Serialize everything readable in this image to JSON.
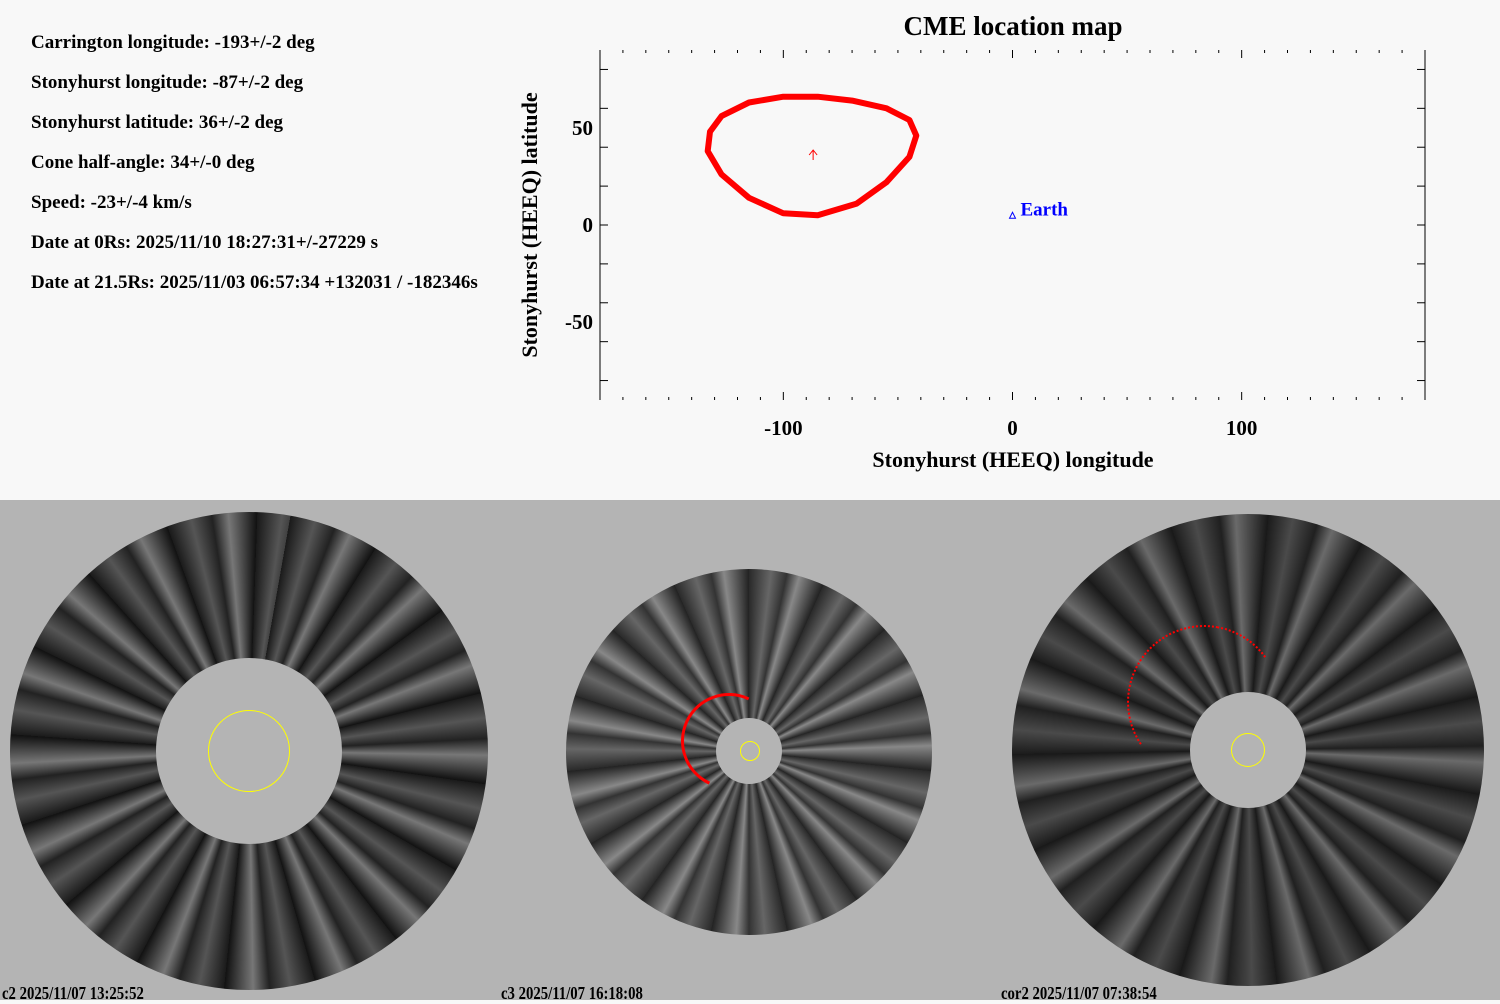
{
  "info": [
    "Carrington longitude: -193+/-2 deg",
    "Stonyhurst longitude: -87+/-2 deg",
    "Stonyhurst latitude: 36+/-2 deg",
    "Cone half-angle: 34+/-0 deg",
    "Speed: -23+/-4 km/s",
    "Date at 0Rs: 2025/11/10 18:27:31+/-27229 s",
    "Date at 21.5Rs: 2025/11/03 06:57:34 +132031 / -182346s"
  ],
  "chart_data": {
    "type": "scatter",
    "title": "CME location map",
    "xlabel": "Stonyhurst (HEEQ) longitude",
    "ylabel": "Stonyhurst (HEEQ) latitude",
    "xlim": [
      -180,
      180
    ],
    "ylim": [
      -90,
      90
    ],
    "xticks": [
      -100,
      0,
      100
    ],
    "yticks": [
      50,
      0,
      -50
    ],
    "grid": false,
    "cme_center": {
      "lon": -87,
      "lat": 36,
      "marker": "arrow",
      "color": "#ff0000"
    },
    "cme_contour": {
      "color": "#ff0000",
      "points": [
        [
          -132,
          48
        ],
        [
          -127,
          56
        ],
        [
          -115,
          63
        ],
        [
          -100,
          66
        ],
        [
          -85,
          66
        ],
        [
          -70,
          64
        ],
        [
          -55,
          60
        ],
        [
          -45,
          54
        ],
        [
          -42,
          46
        ],
        [
          -45,
          35
        ],
        [
          -55,
          22
        ],
        [
          -68,
          11
        ],
        [
          -85,
          5
        ],
        [
          -100,
          6
        ],
        [
          -115,
          14
        ],
        [
          -127,
          26
        ],
        [
          -133,
          38
        ],
        [
          -132,
          48
        ]
      ]
    },
    "earth": {
      "lon": 0,
      "lat": 5,
      "label": "Earth",
      "color": "#0000ff"
    }
  },
  "panels": [
    {
      "caption": "c2 2025/11/07 13:25:52"
    },
    {
      "caption": "c3 2025/11/07 16:18:08"
    },
    {
      "caption": "cor2 2025/11/07 07:38:54"
    }
  ]
}
